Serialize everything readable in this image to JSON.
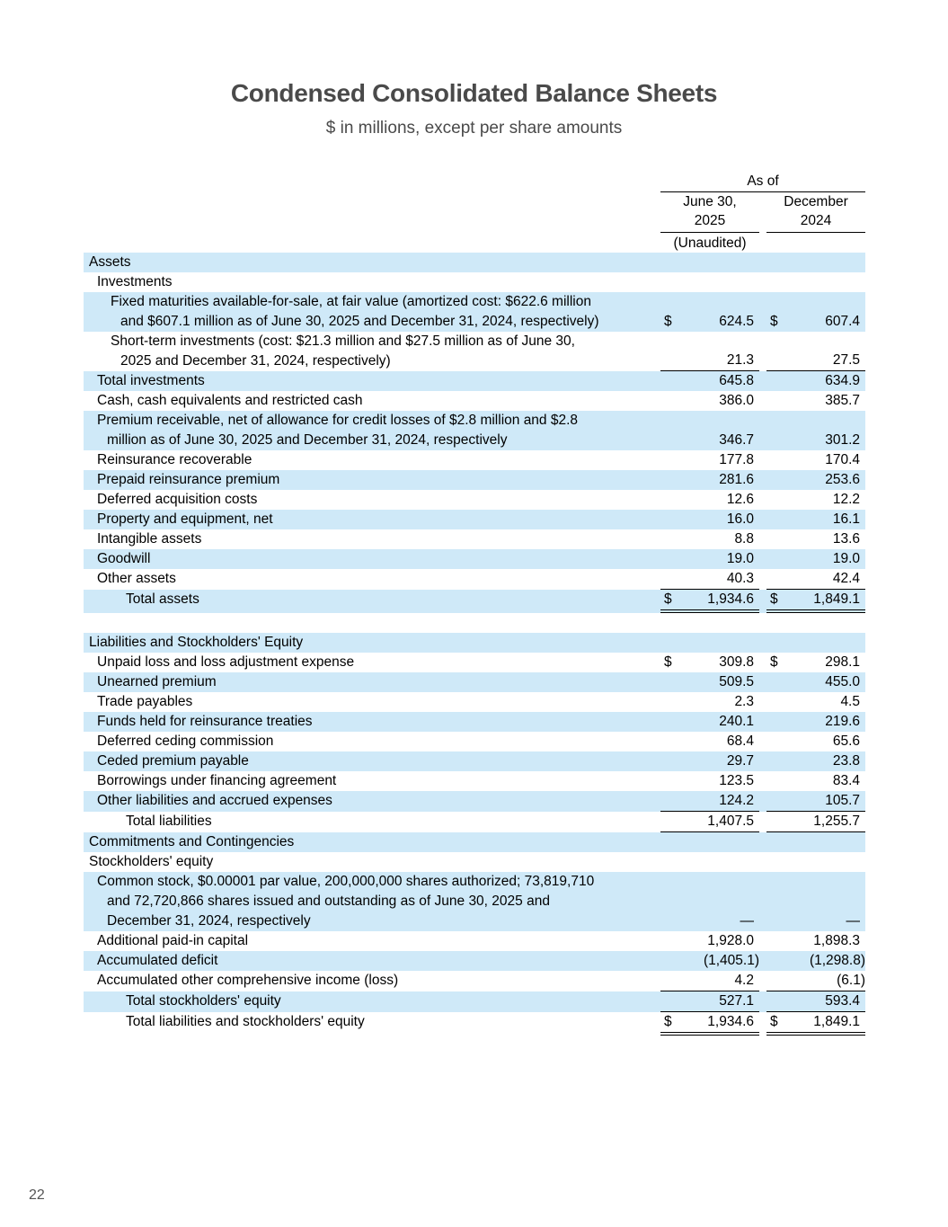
{
  "title": "Condensed Consolidated Balance Sheets",
  "subtitle": "$ in millions, except per share amounts",
  "page_number": "22",
  "colors": {
    "row_highlight": "#cfe9f8",
    "title_gray": "#4a4a4a",
    "rule_black": "#000000"
  },
  "header": {
    "as_of": "As of",
    "col1": [
      "June 30,",
      "2025"
    ],
    "col1_note": "(Unaudited)",
    "col2": [
      "December",
      "2024"
    ]
  },
  "rows": [
    {
      "lines": [
        "Assets"
      ],
      "indent": "section",
      "shaded": true
    },
    {
      "lines": [
        "Investments"
      ],
      "indent": "item",
      "shaded": false
    },
    {
      "lines": [
        "Fixed maturities available-for-sale, at fair value (amortized cost: $622.6 million",
        "and $607.1 million as of June 30, 2025 and December 31, 2024, respectively)"
      ],
      "indent": "sub",
      "shaded": true,
      "d1": "$",
      "v1": "624.5",
      "d2": "$",
      "v2": "607.4"
    },
    {
      "lines": [
        "Short-term investments (cost: $21.3 million and $27.5 million as of June 30,",
        "2025 and December 31, 2024, respectively)"
      ],
      "indent": "sub",
      "shaded": false,
      "v1": "21.3",
      "v2": "27.5",
      "border": "single"
    },
    {
      "lines": [
        "Total investments"
      ],
      "indent": "item",
      "shaded": true,
      "v1": "645.8",
      "v2": "634.9"
    },
    {
      "lines": [
        "Cash, cash equivalents and restricted cash"
      ],
      "indent": "item",
      "shaded": false,
      "v1": "386.0",
      "v2": "385.7"
    },
    {
      "lines": [
        "Premium receivable, net of allowance for credit losses of $2.8 million and $2.8",
        "million as of June 30, 2025 and December 31, 2024, respectively"
      ],
      "indent": "item",
      "shaded": true,
      "v1": "346.7",
      "v2": "301.2"
    },
    {
      "lines": [
        "Reinsurance recoverable"
      ],
      "indent": "item",
      "shaded": false,
      "v1": "177.8",
      "v2": "170.4"
    },
    {
      "lines": [
        "Prepaid reinsurance premium"
      ],
      "indent": "item",
      "shaded": true,
      "v1": "281.6",
      "v2": "253.6"
    },
    {
      "lines": [
        "Deferred acquisition costs"
      ],
      "indent": "item",
      "shaded": false,
      "v1": "12.6",
      "v2": "12.2"
    },
    {
      "lines": [
        "Property and equipment, net"
      ],
      "indent": "item",
      "shaded": true,
      "v1": "16.0",
      "v2": "16.1"
    },
    {
      "lines": [
        "Intangible assets"
      ],
      "indent": "item",
      "shaded": false,
      "v1": "8.8",
      "v2": "13.6"
    },
    {
      "lines": [
        "Goodwill"
      ],
      "indent": "item",
      "shaded": true,
      "v1": "19.0",
      "v2": "19.0"
    },
    {
      "lines": [
        "Other assets"
      ],
      "indent": "item",
      "shaded": false,
      "v1": "40.3",
      "v2": "42.4",
      "border": "single"
    },
    {
      "lines": [
        "Total assets"
      ],
      "indent": "total",
      "shaded": true,
      "d1": "$",
      "v1": "1,934.6",
      "d2": "$",
      "v2": "1,849.1",
      "border": "double"
    },
    {
      "lines": [
        ""
      ],
      "indent": "spacer",
      "shaded": false
    },
    {
      "lines": [
        "Liabilities and Stockholders' Equity"
      ],
      "indent": "section",
      "shaded": true
    },
    {
      "lines": [
        "Unpaid loss and loss adjustment expense"
      ],
      "indent": "item",
      "shaded": false,
      "d1": "$",
      "v1": "309.8",
      "d2": "$",
      "v2": "298.1"
    },
    {
      "lines": [
        "Unearned premium"
      ],
      "indent": "item",
      "shaded": true,
      "v1": "509.5",
      "v2": "455.0"
    },
    {
      "lines": [
        "Trade payables"
      ],
      "indent": "item",
      "shaded": false,
      "v1": "2.3",
      "v2": "4.5"
    },
    {
      "lines": [
        "Funds held for reinsurance treaties"
      ],
      "indent": "item",
      "shaded": true,
      "v1": "240.1",
      "v2": "219.6"
    },
    {
      "lines": [
        "Deferred ceding commission"
      ],
      "indent": "item",
      "shaded": false,
      "v1": "68.4",
      "v2": "65.6"
    },
    {
      "lines": [
        "Ceded premium payable"
      ],
      "indent": "item",
      "shaded": true,
      "v1": "29.7",
      "v2": "23.8"
    },
    {
      "lines": [
        "Borrowings under financing agreement"
      ],
      "indent": "item",
      "shaded": false,
      "v1": "123.5",
      "v2": "83.4"
    },
    {
      "lines": [
        "Other liabilities and accrued expenses"
      ],
      "indent": "item",
      "shaded": true,
      "v1": "124.2",
      "v2": "105.7",
      "border": "single"
    },
    {
      "lines": [
        "Total liabilities"
      ],
      "indent": "total",
      "shaded": false,
      "v1": "1,407.5",
      "v2": "1,255.7",
      "border": "single"
    },
    {
      "lines": [
        "Commitments and Contingencies"
      ],
      "indent": "section",
      "shaded": true
    },
    {
      "lines": [
        "Stockholders' equity"
      ],
      "indent": "section",
      "shaded": false
    },
    {
      "lines": [
        "Common stock, $0.00001 par value, 200,000,000 shares authorized; 73,819,710",
        "and 72,720,866 shares issued and outstanding as of June 30, 2025 and",
        "December 31, 2024, respectively"
      ],
      "indent": "item",
      "shaded": true,
      "v1": "—",
      "v2": "—"
    },
    {
      "lines": [
        "Additional paid-in capital"
      ],
      "indent": "item",
      "shaded": false,
      "v1": "1,928.0",
      "v2": "1,898.3"
    },
    {
      "lines": [
        "Accumulated deficit"
      ],
      "indent": "item",
      "shaded": true,
      "v1": "(1,405.1)",
      "v2": "(1,298.8)"
    },
    {
      "lines": [
        "Accumulated other comprehensive income (loss)"
      ],
      "indent": "item",
      "shaded": false,
      "v1": "4.2",
      "v2": "(6.1)",
      "border": "single"
    },
    {
      "lines": [
        "Total stockholders' equity"
      ],
      "indent": "total",
      "shaded": true,
      "v1": "527.1",
      "v2": "593.4",
      "border": "single"
    },
    {
      "lines": [
        "Total liabilities and stockholders' equity"
      ],
      "indent": "total",
      "shaded": false,
      "d1": "$",
      "v1": "1,934.6",
      "d2": "$",
      "v2": "1,849.1",
      "border": "double"
    }
  ]
}
